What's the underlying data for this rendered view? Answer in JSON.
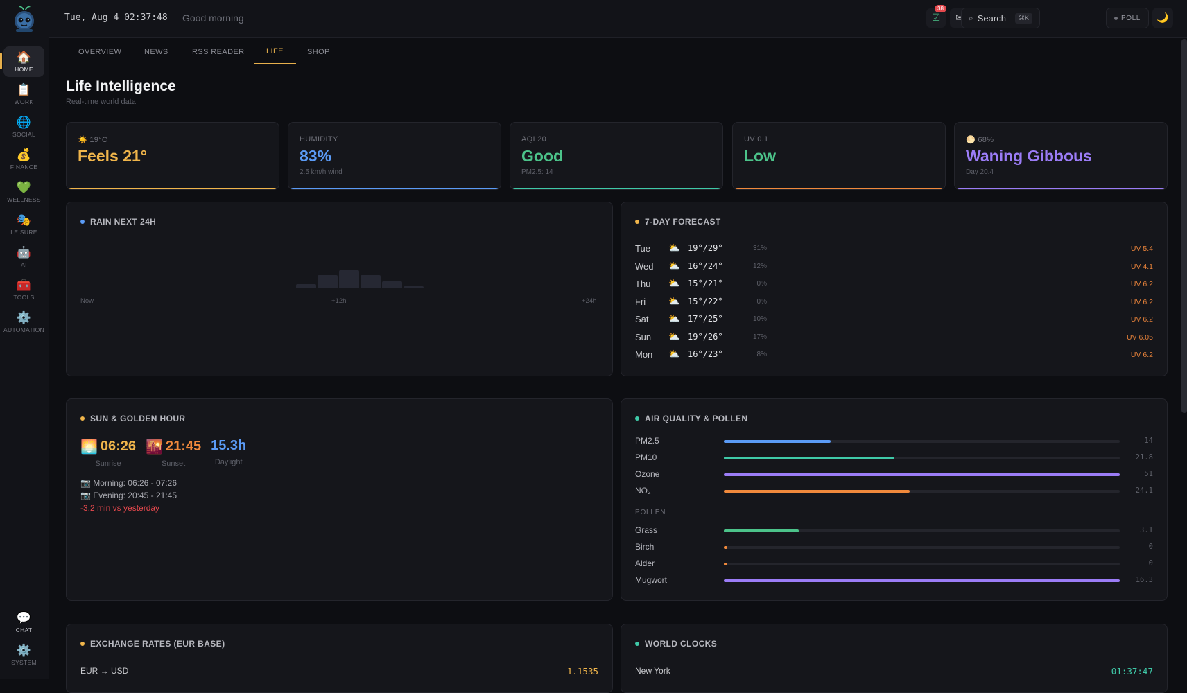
{
  "datetime": "Tue, Aug 4 02:37:48",
  "greeting": "Good morning",
  "notifications_count": "38",
  "search": {
    "label": "Search",
    "shortcut": "⌘K"
  },
  "poll_label": "POLL",
  "sidebar": {
    "items": [
      {
        "label": "HOME",
        "icon": "🏠"
      },
      {
        "label": "WORK",
        "icon": "📋"
      },
      {
        "label": "SOCIAL",
        "icon": "🌐"
      },
      {
        "label": "FINANCE",
        "icon": "💰"
      },
      {
        "label": "WELLNESS",
        "icon": "💚"
      },
      {
        "label": "LEISURE",
        "icon": "🎭"
      },
      {
        "label": "AI",
        "icon": "🤖"
      },
      {
        "label": "TOOLS",
        "icon": "🧰"
      },
      {
        "label": "AUTOMATION",
        "icon": "⚙️"
      }
    ],
    "bottom": [
      {
        "label": "CHAT",
        "icon": "💬"
      },
      {
        "label": "SYSTEM",
        "icon": "⚙️"
      }
    ]
  },
  "tabs": [
    "OVERVIEW",
    "NEWS",
    "RSS READER",
    "LIFE",
    "SHOP"
  ],
  "active_tab": "LIFE",
  "page": {
    "title": "Life Intelligence",
    "subtitle": "Real-time world data"
  },
  "kpis": [
    {
      "label": "☀️ 19°C",
      "value": "Feels 21°",
      "sub": "",
      "color": "#f0b54b"
    },
    {
      "label": "HUMIDITY",
      "value": "83%",
      "sub": "2.5 km/h wind",
      "color": "#5b9bf6"
    },
    {
      "label": "AQI 20",
      "value": "Good",
      "sub": "PM2.5: 14",
      "color": "#3fc9a8"
    },
    {
      "label": "UV 0.1",
      "value": "Low",
      "sub": "",
      "color": "#f0893c"
    },
    {
      "label": "🌕 68%",
      "value": "Waning Gibbous",
      "sub": "Day 20.4",
      "color": "#9b7cf6"
    }
  ],
  "rain": {
    "title": "RAIN NEXT 24H",
    "dot_color": "#5b9bf6",
    "axis": [
      "Now",
      "+12h",
      "+24h"
    ],
    "hourly": [
      0,
      0,
      0,
      0,
      0,
      0,
      0,
      0,
      0,
      0,
      2,
      6,
      8,
      6,
      3,
      1,
      0,
      0,
      0,
      0,
      0,
      0,
      0,
      0
    ]
  },
  "forecast": {
    "title": "7-DAY FORECAST",
    "dot_color": "#f0b54b",
    "days": [
      {
        "day": "Tue",
        "icon": "⛅",
        "temp": "19°/29°",
        "precip": "31%",
        "uv": "UV 5.4"
      },
      {
        "day": "Wed",
        "icon": "⛅",
        "temp": "16°/24°",
        "precip": "12%",
        "uv": "UV 4.1"
      },
      {
        "day": "Thu",
        "icon": "⛅",
        "temp": "15°/21°",
        "precip": "0%",
        "uv": "UV 6.2"
      },
      {
        "day": "Fri",
        "icon": "⛅",
        "temp": "15°/22°",
        "precip": "0%",
        "uv": "UV 6.2"
      },
      {
        "day": "Sat",
        "icon": "⛅",
        "temp": "17°/25°",
        "precip": "10%",
        "uv": "UV 6.2"
      },
      {
        "day": "Sun",
        "icon": "⛅",
        "temp": "19°/26°",
        "precip": "17%",
        "uv": "UV 6.05"
      },
      {
        "day": "Mon",
        "icon": "⛅",
        "temp": "16°/23°",
        "precip": "8%",
        "uv": "UV 6.2"
      }
    ]
  },
  "sun": {
    "title": "SUN & GOLDEN HOUR",
    "dot_color": "#f0b54b",
    "sunrise": {
      "icon": "🌅",
      "time": "06:26",
      "caption": "Sunrise",
      "color": "#f0b54b"
    },
    "sunset": {
      "icon": "🌇",
      "time": "21:45",
      "caption": "Sunset",
      "color": "#f0893c"
    },
    "daylight": {
      "value": "15.3h",
      "caption": "Daylight",
      "color": "#5b9bf6"
    },
    "morning": "📷 Morning: 06:26 - 07:26",
    "evening": "📷 Evening: 20:45 - 21:45",
    "delta": "-3.2 min vs yesterday"
  },
  "air": {
    "title": "AIR QUALITY & POLLEN",
    "dot_color": "#3fc9a8",
    "pollutants": [
      {
        "name": "PM2.5",
        "value": "14",
        "fraction": 0.27,
        "color": "#5b9bf6"
      },
      {
        "name": "PM10",
        "value": "21.8",
        "fraction": 0.43,
        "color": "#3fc9a8"
      },
      {
        "name": "Ozone",
        "value": "51",
        "fraction": 1.0,
        "color": "#9b7cf6"
      },
      {
        "name": "NO₂",
        "value": "24.1",
        "fraction": 0.47,
        "color": "#f0893c"
      }
    ],
    "pollen_label": "POLLEN",
    "pollen": [
      {
        "name": "Grass",
        "value": "3.1",
        "fraction": 0.19,
        "color": "#4cc38a"
      },
      {
        "name": "Birch",
        "value": "0",
        "fraction": 0.0,
        "color": "#f0893c"
      },
      {
        "name": "Alder",
        "value": "0",
        "fraction": 0.0,
        "color": "#f0893c"
      },
      {
        "name": "Mugwort",
        "value": "16.3",
        "fraction": 1.0,
        "color": "#9b7cf6"
      }
    ]
  },
  "exchange": {
    "title": "EXCHANGE RATES (EUR BASE)",
    "dot_color": "#f0b54b",
    "rows": [
      {
        "pair": "EUR → USD",
        "rate": "1.1535"
      }
    ]
  },
  "clocks": {
    "title": "WORLD CLOCKS",
    "dot_color": "#3fc9a8",
    "rows": [
      {
        "city": "New York",
        "time": "01:37:47"
      }
    ]
  }
}
